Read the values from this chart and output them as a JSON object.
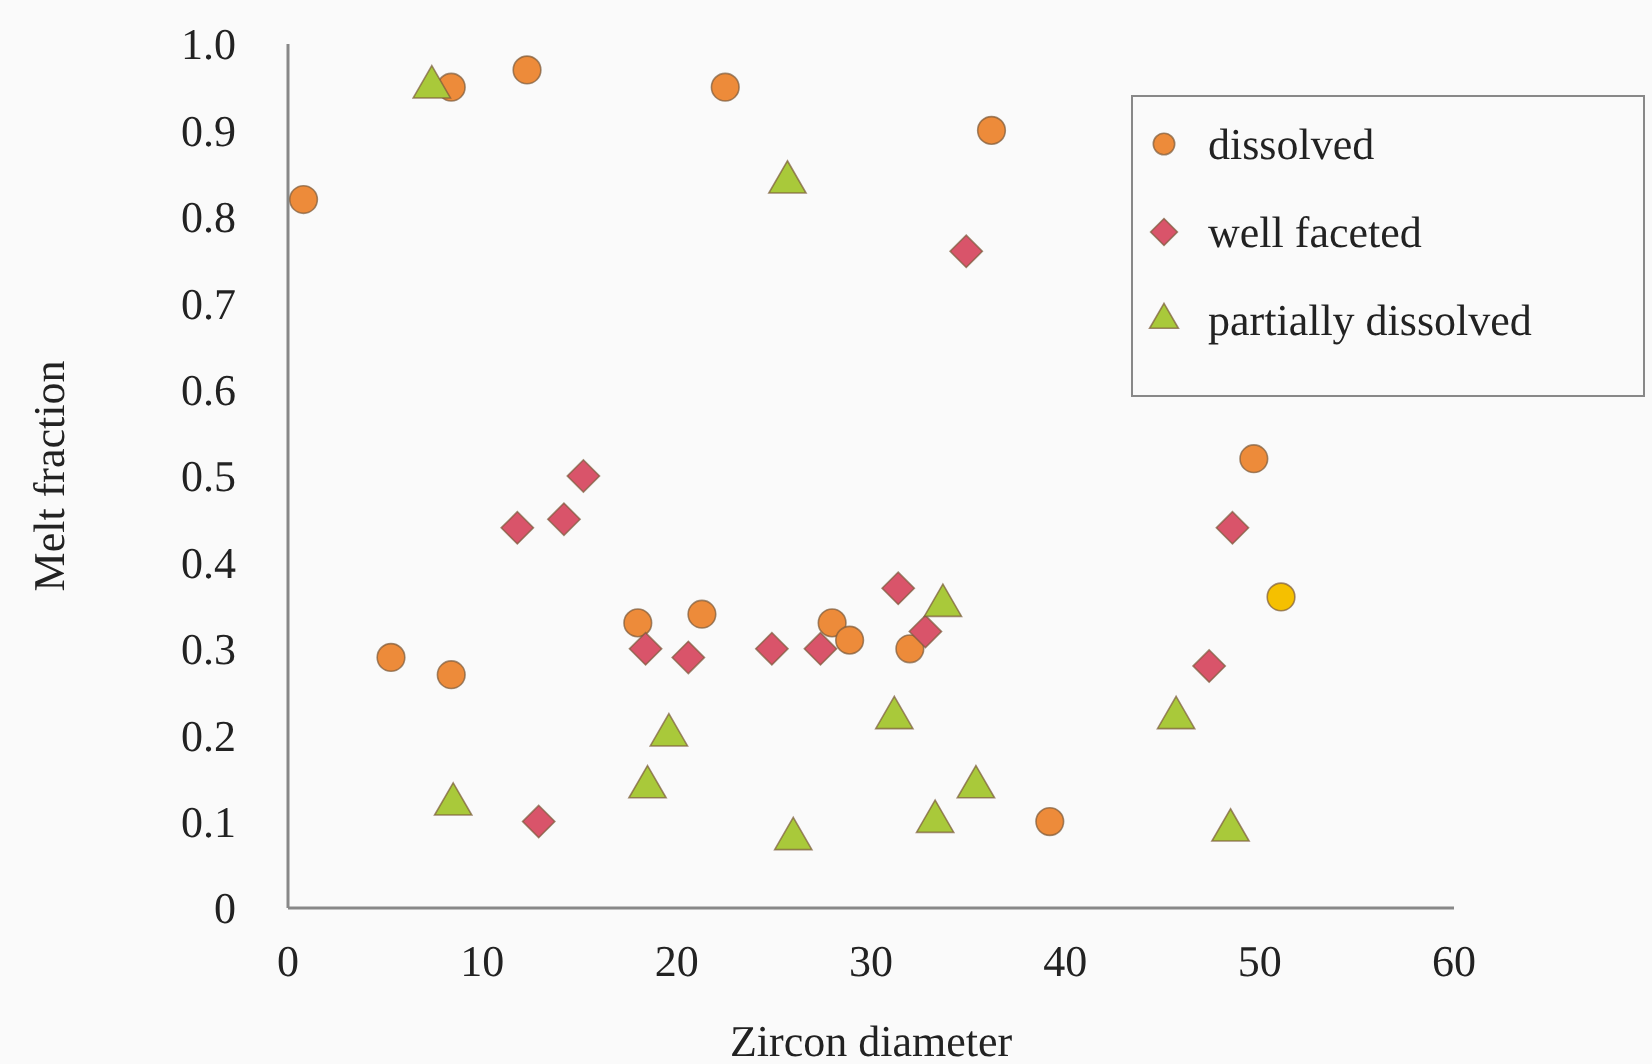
{
  "chart_data": {
    "type": "scatter",
    "xlabel": "Zircon diameter",
    "ylabel": "Melt fraction",
    "xlim": [
      0,
      60
    ],
    "xticks": [
      0,
      10,
      20,
      30,
      40,
      50,
      60
    ],
    "ylim": [
      0,
      1
    ],
    "yticks": [
      0,
      0.1,
      0.2,
      0.3,
      0.4,
      0.5,
      0.6,
      0.7,
      0.8,
      0.9,
      {
        "value": 1,
        "label": "1.0"
      }
    ],
    "grid": false,
    "legend": "top right",
    "series": [
      {
        "name": "dissolved",
        "marker": "circle",
        "color": "#ed8b3a",
        "colors": [
          "#ed8b3a",
          "#ed8b3a",
          "#ed8b3a",
          "#ed8b3a",
          "#ed8b3a",
          "#ed8b3a",
          "#ed8b3a",
          "#ed8b3a",
          "#ed8b3a",
          "#ed8b3a",
          "#ed8b3a",
          "#ed8b3a",
          "#ed8b3a",
          "#ed8b3a",
          "#f5c000"
        ],
        "x": [
          0.8,
          5.3,
          8.4,
          8.4,
          12.3,
          22.5,
          36.2,
          18.0,
          21.3,
          28.0,
          28.9,
          32.0,
          39.2,
          49.7,
          51.1
        ],
        "values": [
          0.82,
          0.29,
          0.95,
          0.27,
          0.97,
          0.95,
          0.9,
          0.33,
          0.34,
          0.33,
          0.31,
          0.3,
          0.1,
          0.52,
          0.36
        ]
      },
      {
        "name": "well faceted",
        "marker": "diamond",
        "color": "#d9546a",
        "x": [
          11.8,
          14.2,
          15.2,
          18.4,
          20.6,
          24.9,
          27.4,
          31.4,
          32.8,
          12.9,
          34.9,
          48.6,
          47.4
        ],
        "values": [
          0.44,
          0.45,
          0.5,
          0.3,
          0.29,
          0.3,
          0.3,
          0.37,
          0.32,
          0.1,
          0.76,
          0.44,
          0.28
        ]
      },
      {
        "name": "partially dissolved",
        "marker": "triangle",
        "color": "#a9c93a",
        "x": [
          7.4,
          25.7,
          8.5,
          18.5,
          19.6,
          26.0,
          31.2,
          33.7,
          33.3,
          35.4,
          45.7,
          48.5
        ],
        "values": [
          0.95,
          0.84,
          0.12,
          0.14,
          0.2,
          0.08,
          0.22,
          0.35,
          0.1,
          0.14,
          0.22,
          0.09
        ]
      }
    ]
  }
}
